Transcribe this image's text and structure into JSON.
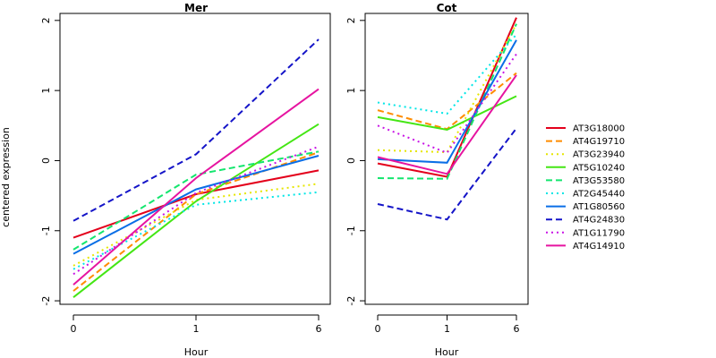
{
  "chart_data": [
    {
      "type": "line",
      "title": "Mer",
      "xlabel": "Hour",
      "ylabel": "centered expression",
      "x": [
        "0",
        "1",
        "6"
      ],
      "ylim": [
        -2.05,
        2.1
      ],
      "yticks": [
        -2,
        -1,
        0,
        1,
        2
      ],
      "grid": false,
      "series": [
        {
          "name": "AT3G18000",
          "values": [
            -1.1,
            -0.48,
            -0.14
          ]
        },
        {
          "name": "AT4G19710",
          "values": [
            -1.86,
            -0.48,
            0.12
          ]
        },
        {
          "name": "AT3G23940",
          "values": [
            -1.5,
            -0.56,
            -0.33
          ]
        },
        {
          "name": "AT5G10240",
          "values": [
            -1.95,
            -0.58,
            0.52
          ]
        },
        {
          "name": "AT3G53580",
          "values": [
            -1.27,
            -0.2,
            0.13
          ]
        },
        {
          "name": "AT2G45440",
          "values": [
            -1.55,
            -0.63,
            -0.45
          ]
        },
        {
          "name": "AT1G80560",
          "values": [
            -1.33,
            -0.41,
            0.07
          ]
        },
        {
          "name": "AT4G24830",
          "values": [
            -0.86,
            0.09,
            1.73
          ]
        },
        {
          "name": "AT1G11790",
          "values": [
            -1.62,
            -0.46,
            0.2
          ]
        },
        {
          "name": "AT4G14910",
          "values": [
            -1.77,
            -0.25,
            1.02
          ]
        }
      ]
    },
    {
      "type": "line",
      "title": "Cot",
      "xlabel": "Hour",
      "ylabel": "",
      "x": [
        "0",
        "1",
        "6"
      ],
      "ylim": [
        -2.05,
        2.1
      ],
      "yticks": [
        -2,
        -1,
        0,
        1,
        2
      ],
      "grid": false,
      "series": [
        {
          "name": "AT3G18000",
          "values": [
            -0.04,
            -0.23,
            2.04
          ]
        },
        {
          "name": "AT4G19710",
          "values": [
            0.72,
            0.45,
            1.25
          ]
        },
        {
          "name": "AT3G23940",
          "values": [
            0.15,
            0.12,
            1.95
          ]
        },
        {
          "name": "AT5G10240",
          "values": [
            0.62,
            0.44,
            0.92
          ]
        },
        {
          "name": "AT3G53580",
          "values": [
            -0.25,
            -0.26,
            1.95
          ]
        },
        {
          "name": "AT2G45440",
          "values": [
            0.83,
            0.67,
            1.8
          ]
        },
        {
          "name": "AT1G80560",
          "values": [
            0.02,
            -0.03,
            1.72
          ]
        },
        {
          "name": "AT4G24830",
          "values": [
            -0.62,
            -0.84,
            0.46
          ]
        },
        {
          "name": "AT1G11790",
          "values": [
            0.5,
            0.11,
            1.52
          ]
        },
        {
          "name": "AT4G14910",
          "values": [
            0.05,
            -0.19,
            1.22
          ]
        }
      ]
    }
  ],
  "legend": {
    "position": "right",
    "items": [
      {
        "label": "AT3G18000",
        "color": "#E3001B",
        "dash": "solid"
      },
      {
        "label": "AT4G19710",
        "color": "#FF8C00",
        "dash": "dashed"
      },
      {
        "label": "AT3G23940",
        "color": "#E6E600",
        "dash": "dotted"
      },
      {
        "label": "AT5G10240",
        "color": "#44E614",
        "dash": "solid"
      },
      {
        "label": "AT3G53580",
        "color": "#14E66E",
        "dash": "dashed"
      },
      {
        "label": "AT2G45440",
        "color": "#00E6E6",
        "dash": "dotted"
      },
      {
        "label": "AT1G80560",
        "color": "#0A6EE6",
        "dash": "solid"
      },
      {
        "label": "AT4G24830",
        "color": "#1414C8",
        "dash": "dashed"
      },
      {
        "label": "AT1G11790",
        "color": "#C814E6",
        "dash": "dotted"
      },
      {
        "label": "AT4G14910",
        "color": "#E614A0",
        "dash": "solid"
      }
    ]
  }
}
